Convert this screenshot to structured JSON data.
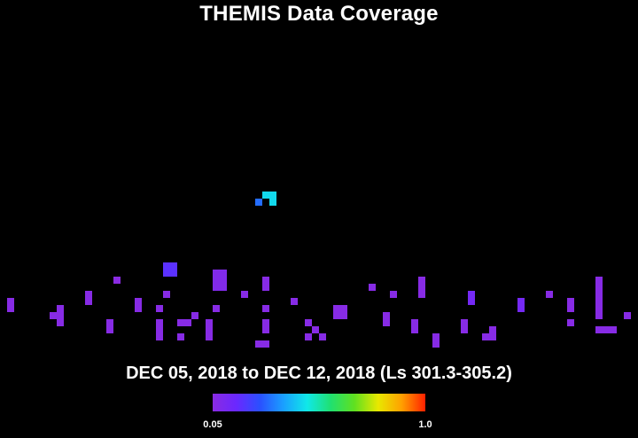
{
  "title": "THEMIS Data Coverage",
  "subtitle": "DEC 05, 2018 to DEC 12, 2018 (Ls 301.3-305.2)",
  "colorbar": {
    "min_label": "0.05",
    "max_label": "1.0",
    "colors": [
      "#8a2be2",
      "#6a28ff",
      "#2a50ff",
      "#1aa0ff",
      "#10e8e8",
      "#20e070",
      "#60e020",
      "#e8e800",
      "#ffa000",
      "#ff2000"
    ]
  },
  "chart_data": {
    "type": "heatmap",
    "title": "THEMIS Data Coverage",
    "subtitle": "DEC 05, 2018 to DEC 12, 2018 (Ls 301.3-305.2)",
    "value_range": [
      0.05,
      1.0
    ],
    "colormap": "rainbow (violet to red)",
    "grid": {
      "cols": 90,
      "rows": 46
    },
    "cells": [
      [
        37,
        22,
        0.45
      ],
      [
        38,
        22,
        0.45
      ],
      [
        38,
        23,
        0.45
      ],
      [
        36,
        23,
        0.3
      ],
      [
        23,
        32,
        0.18
      ],
      [
        24,
        32,
        0.18
      ],
      [
        23,
        33,
        0.18
      ],
      [
        24,
        33,
        0.18
      ],
      [
        30,
        33,
        0.08
      ],
      [
        31,
        33,
        0.08
      ],
      [
        30,
        34,
        0.08
      ],
      [
        30,
        35,
        0.08
      ],
      [
        31,
        35,
        0.08
      ],
      [
        31,
        34,
        0.08
      ],
      [
        16,
        34,
        0.05
      ],
      [
        37,
        34,
        0.06
      ],
      [
        37,
        35,
        0.06
      ],
      [
        52,
        35,
        0.06
      ],
      [
        59,
        34,
        0.06
      ],
      [
        59,
        35,
        0.06
      ],
      [
        59,
        36,
        0.06
      ],
      [
        66,
        36,
        0.12
      ],
      [
        66,
        37,
        0.12
      ],
      [
        84,
        34,
        0.06
      ],
      [
        84,
        35,
        0.06
      ],
      [
        84,
        36,
        0.06
      ],
      [
        84,
        37,
        0.06
      ],
      [
        84,
        38,
        0.06
      ],
      [
        84,
        39,
        0.06
      ],
      [
        1,
        37,
        0.06
      ],
      [
        1,
        38,
        0.06
      ],
      [
        12,
        36,
        0.06
      ],
      [
        12,
        37,
        0.06
      ],
      [
        19,
        37,
        0.06
      ],
      [
        19,
        38,
        0.06
      ],
      [
        23,
        36,
        0.06
      ],
      [
        34,
        36,
        0.06
      ],
      [
        41,
        37,
        0.06
      ],
      [
        55,
        36,
        0.06
      ],
      [
        73,
        37,
        0.12
      ],
      [
        73,
        38,
        0.12
      ],
      [
        77,
        36,
        0.06
      ],
      [
        80,
        37,
        0.06
      ],
      [
        80,
        38,
        0.06
      ],
      [
        8,
        38,
        0.06
      ],
      [
        8,
        39,
        0.06
      ],
      [
        22,
        38,
        0.06
      ],
      [
        30,
        38,
        0.06
      ],
      [
        48,
        38,
        0.06
      ],
      [
        54,
        39,
        0.06
      ],
      [
        54,
        40,
        0.06
      ],
      [
        47,
        38,
        0.06
      ],
      [
        47,
        39,
        0.06
      ],
      [
        37,
        38,
        0.06
      ],
      [
        7,
        39,
        0.06
      ],
      [
        8,
        40,
        0.06
      ],
      [
        26,
        40,
        0.06
      ],
      [
        27,
        39,
        0.06
      ],
      [
        25,
        40,
        0.06
      ],
      [
        29,
        40,
        0.06
      ],
      [
        48,
        39,
        0.06
      ],
      [
        43,
        40,
        0.06
      ],
      [
        44,
        41,
        0.06
      ],
      [
        88,
        39,
        0.06
      ],
      [
        15,
        40,
        0.06
      ],
      [
        15,
        41,
        0.06
      ],
      [
        22,
        40,
        0.06
      ],
      [
        22,
        41,
        0.06
      ],
      [
        29,
        41,
        0.06
      ],
      [
        37,
        40,
        0.06
      ],
      [
        37,
        41,
        0.06
      ],
      [
        58,
        40,
        0.06
      ],
      [
        58,
        41,
        0.06
      ],
      [
        65,
        40,
        0.06
      ],
      [
        65,
        41,
        0.06
      ],
      [
        69,
        41,
        0.06
      ],
      [
        80,
        40,
        0.06
      ],
      [
        22,
        42,
        0.06
      ],
      [
        25,
        42,
        0.06
      ],
      [
        29,
        42,
        0.06
      ],
      [
        36,
        43,
        0.06
      ],
      [
        37,
        43,
        0.06
      ],
      [
        43,
        42,
        0.06
      ],
      [
        45,
        42,
        0.06
      ],
      [
        61,
        42,
        0.06
      ],
      [
        61,
        43,
        0.06
      ],
      [
        68,
        42,
        0.06
      ],
      [
        69,
        42,
        0.06
      ],
      [
        85,
        41,
        0.06
      ],
      [
        86,
        41,
        0.06
      ],
      [
        84,
        41,
        0.06
      ]
    ]
  }
}
